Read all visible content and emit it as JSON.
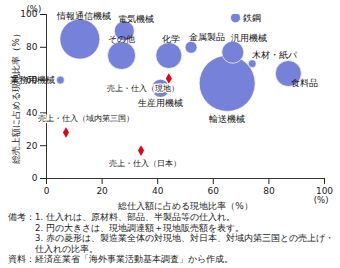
{
  "chart_data": {
    "type": "scatter",
    "x_label": "総仕入額に占める現地比率（%）",
    "y_label": "総売上額に占める現地比率（%）",
    "x_unit": "(%)",
    "y_unit": "(%)",
    "xlim": [
      0,
      100
    ],
    "ylim": [
      0,
      100
    ],
    "xticks": [
      0,
      20,
      40,
      60,
      80,
      100
    ],
    "yticks": [
      0,
      20,
      40,
      60,
      80,
      100
    ],
    "grid": false,
    "points": {
      "labels": [
        "情報通信機械",
        "電気機械",
        "その他",
        "化学",
        "金属製品",
        "鉄鋼",
        "汎用機械",
        "木材・紙パ",
        "業務用機械",
        "生産用機械",
        "輸送機械",
        "食料品"
      ],
      "x": [
        12,
        28,
        27,
        44,
        52,
        68,
        67,
        74,
        5,
        41,
        65,
        87
      ],
      "y": [
        85,
        90,
        75,
        75,
        80,
        98,
        77,
        70,
        60,
        55,
        58,
        64
      ],
      "sizes": [
        400,
        100,
        196,
        169,
        36,
        25,
        121,
        16,
        16,
        81,
        784,
        169
      ],
      "color": "#7682d9",
      "marker": "circle"
    },
    "reference_points": {
      "labels": [
        "売上・仕入（現地）",
        "売上・仕入（域内第三国）",
        "売上・仕入（日本）"
      ],
      "x": [
        44,
        7,
        34
      ],
      "y": [
        61,
        28,
        17
      ],
      "color": "#e60012",
      "marker": "diamond"
    },
    "notes": {
      "label": "備考：",
      "items": [
        "1. 仕入れは、原材料、部品、半製品等の仕入れ。",
        "2. 円の大きさは、現地調達額＋現地販売額を表す。",
        "3. 赤の菱形は、製造業全体の対現地、対日本、対域内第三国との売上げ・仕入れの比率。"
      ]
    },
    "source": "資料：経済産業省「海外事業活動基本調査」から作成。"
  }
}
